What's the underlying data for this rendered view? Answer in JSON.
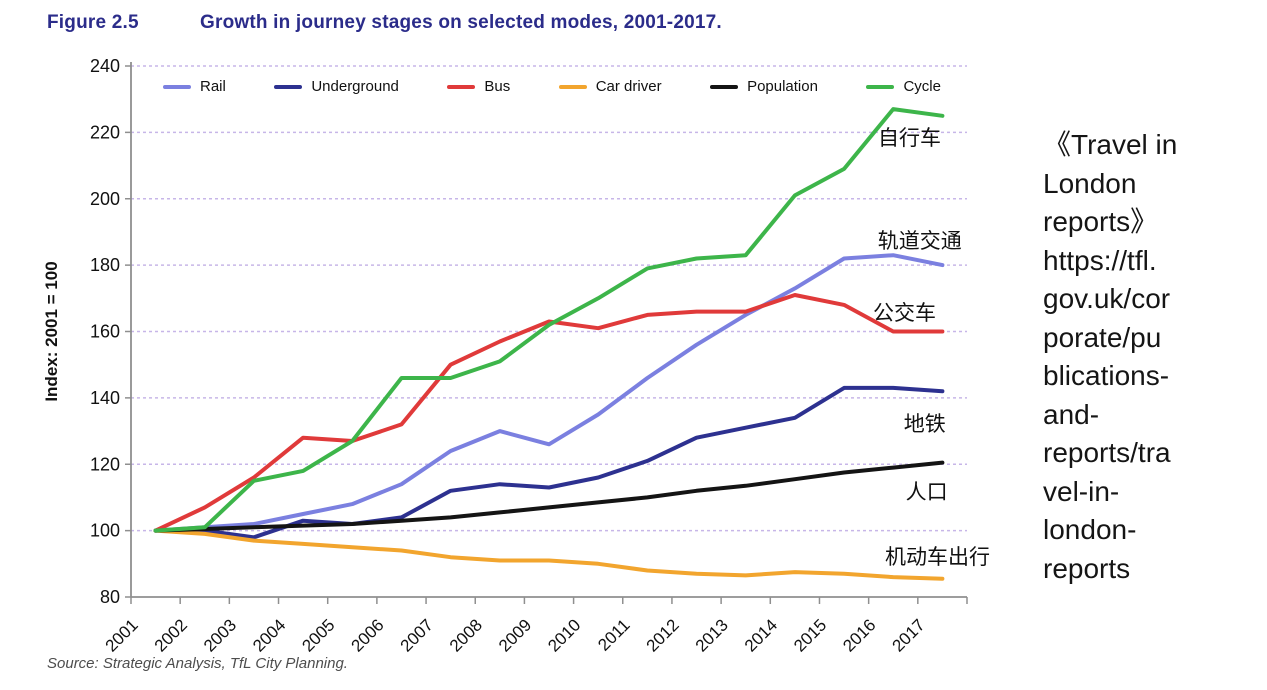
{
  "figure": {
    "label": "Figure 2.5",
    "caption": "Growth in journey stages on selected modes, 2001-2017."
  },
  "source": "Source: Strategic Analysis, TfL City Planning.",
  "side_note": {
    "lines": [
      "《Travel in",
      "London",
      "reports》",
      "https://tfl.",
      "gov.uk/cor",
      "porate/pu",
      "blications-",
      "and-",
      "reports/tra",
      "vel-in-",
      "london-",
      "reports"
    ]
  },
  "chart_data": {
    "type": "line",
    "title": "Growth in journey stages on selected modes, 2001-2017.",
    "xlabel": "",
    "ylabel": "Index: 2001 = 100",
    "ylim": [
      80,
      240
    ],
    "ytick_step": 20,
    "grid": "horizontal-dashed",
    "gridline_color": "#c7b6e8",
    "axis_color": "#8f8f8f",
    "legend_position": "top",
    "categories": [
      "2001",
      "2002",
      "2003",
      "2004",
      "2005",
      "2006",
      "2007",
      "2008",
      "2009",
      "2010",
      "2011",
      "2012",
      "2013",
      "2014",
      "2015",
      "2016",
      "2017"
    ],
    "series": [
      {
        "name": "Rail",
        "color": "#7b80e0",
        "values": [
          100,
          101,
          102,
          105,
          108,
          114,
          124,
          130,
          126,
          135,
          146,
          156,
          165,
          173,
          182,
          183,
          180
        ]
      },
      {
        "name": "Underground",
        "color": "#2d3190",
        "values": [
          100,
          100,
          98,
          103,
          102,
          104,
          112,
          114,
          113,
          116,
          121,
          128,
          131,
          134,
          143,
          143,
          142
        ]
      },
      {
        "name": "Bus",
        "color": "#e03a3a",
        "values": [
          100,
          107,
          116,
          128,
          127,
          132,
          150,
          157,
          163,
          161,
          165,
          166,
          166,
          171,
          168,
          160,
          160
        ]
      },
      {
        "name": "Car driver",
        "color": "#f2a52e",
        "values": [
          100,
          99,
          97,
          96,
          95,
          94,
          92,
          91,
          91,
          90,
          88,
          87,
          86.5,
          87.5,
          87,
          86,
          85.5
        ]
      },
      {
        "name": "Population",
        "color": "#141414",
        "values": [
          100,
          100.5,
          101,
          101.5,
          102,
          103,
          104,
          105.5,
          107,
          108.5,
          110,
          112,
          113.5,
          115.5,
          117.5,
          119,
          120.5
        ]
      },
      {
        "name": "Cycle",
        "color": "#3db54a",
        "values": [
          100,
          101,
          115,
          118,
          127,
          146,
          146,
          151,
          162,
          170,
          179,
          182,
          183,
          201,
          209,
          227,
          225
        ]
      }
    ],
    "annotations": [
      {
        "label": "自行车",
        "year": 2016.33,
        "value": 218.5
      },
      {
        "label": "轨道交通",
        "year": 2016.54,
        "value": 187.5
      },
      {
        "label": "公交车",
        "year": 2016.23,
        "value": 166.0
      },
      {
        "label": "地铁",
        "year": 2016.64,
        "value": 132.5
      },
      {
        "label": "人口",
        "year": 2016.68,
        "value": 112.0
      },
      {
        "label": "机动车出行",
        "year": 2016.9,
        "value": 92.5
      }
    ]
  }
}
